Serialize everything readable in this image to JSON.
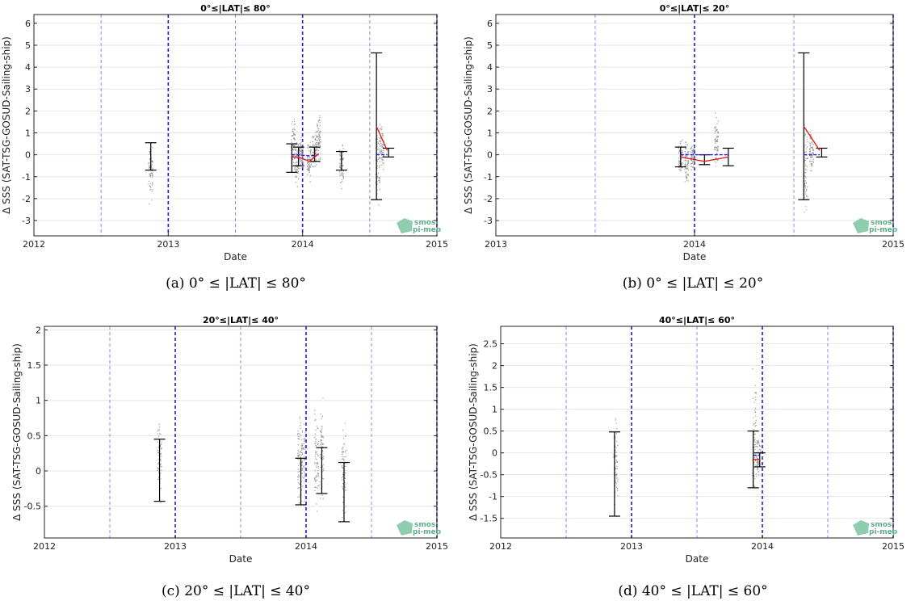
{
  "chart_data": [
    {
      "type": "scatter",
      "title": "0°≤|LAT|≤ 80°",
      "caption": "(a) 0° ≤ |LAT| ≤ 80°",
      "xlabel": "Date",
      "ylabel": "Δ SSS (SAT-TSG-GOSUD-Sailing-ship)",
      "xlim": [
        2012,
        2015
      ],
      "ylim": [
        -3.7,
        6.4
      ],
      "xticks": [
        2012,
        2013,
        2014,
        2015
      ],
      "yticks": [
        -3,
        -2,
        -1,
        0,
        1,
        2,
        3,
        4,
        5,
        6
      ],
      "grid": true,
      "year_lines": [
        2013,
        2014,
        2015
      ],
      "half_year_lines": [
        2012.5,
        2013.5,
        2014.5
      ],
      "scatter_columns": [
        {
          "x": 2012.87,
          "lo": -2.7,
          "hi": 1.2
        },
        {
          "x": 2013.93,
          "lo": -1.2,
          "hi": 2.2
        },
        {
          "x": 2013.96,
          "lo": -1.6,
          "hi": 1.0
        },
        {
          "x": 2013.99,
          "lo": -0.8,
          "hi": 0.9
        },
        {
          "x": 2014.05,
          "lo": -1.4,
          "hi": 0.8
        },
        {
          "x": 2014.09,
          "lo": -0.9,
          "hi": 1.4
        },
        {
          "x": 2014.12,
          "lo": -0.8,
          "hi": 2.3
        },
        {
          "x": 2014.29,
          "lo": -1.8,
          "hi": 0.9
        },
        {
          "x": 2014.56,
          "lo": -3.3,
          "hi": 1.8
        },
        {
          "x": 2014.59,
          "lo": -1.2,
          "hi": 1.6
        }
      ],
      "error_bars": [
        {
          "x": 2012.87,
          "lo": -0.7,
          "hi": 0.55
        },
        {
          "x": 2013.92,
          "lo": -0.8,
          "hi": 0.5
        },
        {
          "x": 2013.97,
          "lo": -0.5,
          "hi": 0.35
        },
        {
          "x": 2014.09,
          "lo": -0.3,
          "hi": 0.35
        },
        {
          "x": 2014.29,
          "lo": -0.7,
          "hi": 0.15
        },
        {
          "x": 2014.55,
          "lo": -2.05,
          "hi": 4.65
        },
        {
          "x": 2014.64,
          "lo": -0.1,
          "hi": 0.3
        }
      ],
      "mean_line": {
        "x": [
          2013.92,
          2013.97,
          2014.05,
          2014.12
        ],
        "y": [
          -0.1,
          -0.1,
          -0.3,
          0.05
        ]
      },
      "mean_line2": {
        "x": [
          2014.55,
          2014.63
        ],
        "y": [
          1.3,
          0.2
        ]
      },
      "median_line": {
        "x": [
          2013.92,
          2013.97,
          2014.05,
          2014.12
        ],
        "y": [
          0.0,
          0.0,
          -0.05,
          0.0
        ]
      },
      "median_line2": {
        "x": [
          2014.55,
          2014.63
        ],
        "y": [
          0.0,
          0.0
        ]
      },
      "logo": "smos pi-mep"
    },
    {
      "type": "scatter",
      "title": "0°≤|LAT|≤ 20°",
      "caption": "(b) 0° ≤ |LAT| ≤ 20°",
      "xlabel": "Date",
      "ylabel": "Δ SSS (SAT-TSG-GOSUD-Sailing-ship)",
      "xlim": [
        2013,
        2015
      ],
      "ylim": [
        -3.7,
        6.4
      ],
      "xticks": [
        2013,
        2014,
        2015
      ],
      "yticks": [
        -3,
        -2,
        -1,
        0,
        1,
        2,
        3,
        4,
        5,
        6
      ],
      "grid": true,
      "year_lines": [
        2014,
        2015
      ],
      "half_year_lines": [
        2013.5,
        2014.5
      ],
      "scatter_columns": [
        {
          "x": 2013.93,
          "lo": -1.2,
          "hi": 1.0
        },
        {
          "x": 2013.96,
          "lo": -1.7,
          "hi": 1.0
        },
        {
          "x": 2013.99,
          "lo": -0.9,
          "hi": 0.7
        },
        {
          "x": 2014.11,
          "lo": -0.8,
          "hi": 2.2
        },
        {
          "x": 2014.56,
          "lo": -3.3,
          "hi": 1.8
        },
        {
          "x": 2014.59,
          "lo": -1.2,
          "hi": 1.6
        }
      ],
      "error_bars": [
        {
          "x": 2013.93,
          "lo": -0.55,
          "hi": 0.35
        },
        {
          "x": 2014.05,
          "lo": -0.45,
          "hi": 0.0
        },
        {
          "x": 2014.17,
          "lo": -0.5,
          "hi": 0.3
        },
        {
          "x": 2014.55,
          "lo": -2.05,
          "hi": 4.65
        },
        {
          "x": 2014.64,
          "lo": -0.1,
          "hi": 0.3
        }
      ],
      "mean_line": {
        "x": [
          2013.93,
          2014.05,
          2014.17
        ],
        "y": [
          -0.1,
          -0.3,
          -0.1
        ]
      },
      "mean_line2": {
        "x": [
          2014.55,
          2014.63
        ],
        "y": [
          1.3,
          0.2
        ]
      },
      "median_line": {
        "x": [
          2013.93,
          2014.05,
          2014.17
        ],
        "y": [
          0.0,
          0.0,
          0.0
        ]
      },
      "median_line2": {
        "x": [
          2014.55,
          2014.63
        ],
        "y": [
          0.0,
          0.0
        ]
      },
      "logo": "smos pi-mep"
    },
    {
      "type": "scatter",
      "title": "20°≤|LAT|≤ 40°",
      "caption": "(c) 20° ≤ |LAT| ≤ 40°",
      "xlabel": "Date",
      "ylabel": "Δ SSS (SAT-TSG-GOSUD-Sailing-ship)",
      "xlim": [
        2012,
        2015
      ],
      "ylim": [
        -0.95,
        2.05
      ],
      "xticks": [
        2012,
        2013,
        2014,
        2015
      ],
      "yticks": [
        -0.5,
        0,
        0.5,
        1,
        1.5,
        2
      ],
      "ytick_labels": [
        "-0.5",
        "0",
        "0.5",
        "1",
        "1.5",
        "2"
      ],
      "grid": true,
      "year_lines": [
        2013,
        2014,
        2015
      ],
      "half_year_lines": [
        2012.5,
        2013.5,
        2014.5
      ],
      "scatter_columns": [
        {
          "x": 2012.88,
          "lo": -0.7,
          "hi": 1.0
        },
        {
          "x": 2013.95,
          "lo": -0.85,
          "hi": 1.1
        },
        {
          "x": 2013.98,
          "lo": -0.5,
          "hi": 0.9
        },
        {
          "x": 2014.08,
          "lo": -0.8,
          "hi": 1.2
        },
        {
          "x": 2014.12,
          "lo": -0.6,
          "hi": 1.1
        },
        {
          "x": 2014.29,
          "lo": -0.9,
          "hi": 0.9
        }
      ],
      "error_bars": [
        {
          "x": 2012.88,
          "lo": -0.43,
          "hi": 0.45
        },
        {
          "x": 2013.96,
          "lo": -0.48,
          "hi": 0.18
        },
        {
          "x": 2014.12,
          "lo": -0.32,
          "hi": 0.33
        },
        {
          "x": 2014.29,
          "lo": -0.72,
          "hi": 0.12
        }
      ],
      "logo": "smos pi-mep"
    },
    {
      "type": "scatter",
      "title": "40°≤|LAT|≤ 60°",
      "caption": "(d) 40° ≤ |LAT| ≤ 60°",
      "xlabel": "Date",
      "ylabel": "Δ SSS (SAT-TSG-GOSUD-Sailing-ship)",
      "xlim": [
        2012,
        2015
      ],
      "ylim": [
        -1.95,
        2.9
      ],
      "xticks": [
        2012,
        2013,
        2014,
        2015
      ],
      "yticks": [
        -1.5,
        -1,
        -0.5,
        0,
        0.5,
        1,
        1.5,
        2,
        2.5
      ],
      "ytick_labels": [
        "-1.5",
        "-1",
        "-0.5",
        "0",
        "0.5",
        "1",
        "1.5",
        "2",
        "2.5"
      ],
      "grid": true,
      "year_lines": [
        2013,
        2014,
        2015
      ],
      "half_year_lines": [
        2012.5,
        2013.5,
        2014.5
      ],
      "scatter_columns": [
        {
          "x": 2012.88,
          "lo": -1.8,
          "hi": 1.15
        },
        {
          "x": 2013.94,
          "lo": -1.4,
          "hi": 2.2
        },
        {
          "x": 2013.97,
          "lo": -0.7,
          "hi": 0.6
        }
      ],
      "error_bars": [
        {
          "x": 2012.87,
          "lo": -1.45,
          "hi": 0.48
        },
        {
          "x": 2013.93,
          "lo": -0.8,
          "hi": 0.5
        },
        {
          "x": 2013.98,
          "lo": -0.32,
          "hi": 0.0
        }
      ],
      "mean_line": {
        "x": [
          2013.93,
          2013.98
        ],
        "y": [
          -0.15,
          -0.15
        ]
      },
      "median_line": {
        "x": [
          2013.93,
          2013.98
        ],
        "y": [
          -0.05,
          -0.05
        ]
      },
      "logo": "smos pi-mep"
    }
  ]
}
